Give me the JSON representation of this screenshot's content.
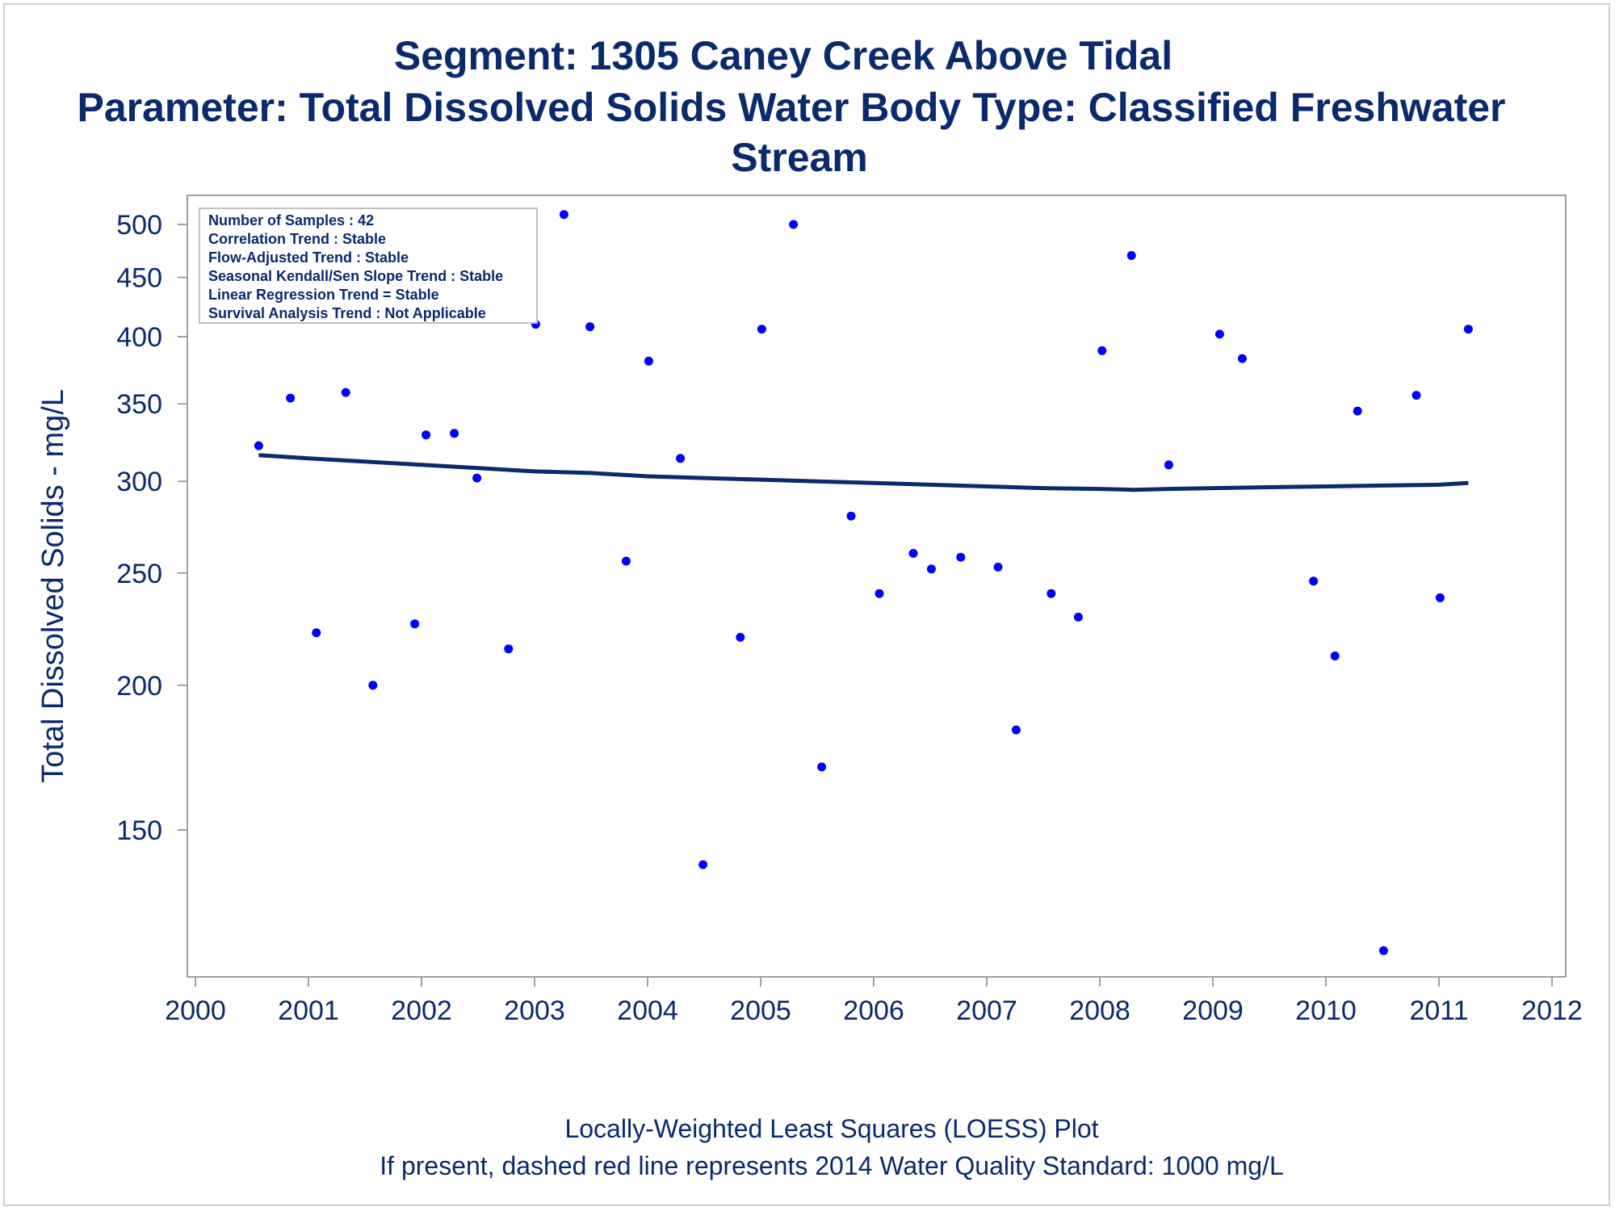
{
  "titles": {
    "line1": "Segment: 1305  Caney Creek Above Tidal",
    "line2": "Parameter: Total Dissolved Solids   Water Body Type: Classified Freshwater",
    "line3": "Stream"
  },
  "footnotes": {
    "line1": "Locally-Weighted Least Squares (LOESS) Plot",
    "line2": "If present, dashed red line represents 2014 Water Quality Standard: 1000  mg/L"
  },
  "stats_box": [
    "Number of Samples : 42",
    "Correlation Trend : Stable",
    "Flow-Adjusted Trend : Stable",
    "Seasonal Kendall/Sen Slope Trend : Stable",
    "Linear Regression Trend = Stable",
    "Survival Analysis Trend : Not Applicable"
  ],
  "colors": {
    "text": "#0a2a6e",
    "points": "#0000ff",
    "loess": "#0a2a6e",
    "frame": "#a0a0a0"
  },
  "chart_data": {
    "type": "scatter",
    "title": "Segment: 1305  Caney Creek Above Tidal",
    "xlabel": "",
    "ylabel": "Total Dissolved Solids - mg/L",
    "y_scale": "log",
    "xlim": [
      2000,
      2012
    ],
    "ylim": [
      120,
      520
    ],
    "x_ticks": [
      2000,
      2001,
      2002,
      2003,
      2004,
      2005,
      2006,
      2007,
      2008,
      2009,
      2010,
      2011,
      2012
    ],
    "y_ticks": [
      150,
      200,
      250,
      300,
      350,
      400,
      450,
      500
    ],
    "grid": false,
    "series": [
      {
        "type": "scatter",
        "points": [
          [
            2000.56,
            322
          ],
          [
            2000.84,
            354
          ],
          [
            2001.07,
            222
          ],
          [
            2001.33,
            358
          ],
          [
            2001.57,
            200
          ],
          [
            2001.94,
            226
          ],
          [
            2002.04,
            329
          ],
          [
            2002.29,
            330
          ],
          [
            2002.49,
            302
          ],
          [
            2002.77,
            215
          ],
          [
            2003.01,
            410
          ],
          [
            2003.26,
            510
          ],
          [
            2003.49,
            408
          ],
          [
            2003.81,
            256
          ],
          [
            2004.01,
            381
          ],
          [
            2004.29,
            314
          ],
          [
            2004.49,
            140
          ],
          [
            2004.82,
            220
          ],
          [
            2005.01,
            406
          ],
          [
            2005.29,
            500
          ],
          [
            2005.54,
            170
          ],
          [
            2005.8,
            280
          ],
          [
            2006.05,
            240
          ],
          [
            2006.35,
            260
          ],
          [
            2006.51,
            252
          ],
          [
            2006.77,
            258
          ],
          [
            2007.1,
            253
          ],
          [
            2007.26,
            183
          ],
          [
            2007.57,
            240
          ],
          [
            2007.81,
            229
          ],
          [
            2008.02,
            389
          ],
          [
            2008.28,
            470
          ],
          [
            2008.61,
            310
          ],
          [
            2009.06,
            402
          ],
          [
            2009.26,
            383
          ],
          [
            2009.89,
            246
          ],
          [
            2010.08,
            212
          ],
          [
            2010.28,
            345
          ],
          [
            2010.51,
            118
          ],
          [
            2010.8,
            356
          ],
          [
            2011.01,
            238
          ],
          [
            2011.26,
            406
          ]
        ]
      },
      {
        "type": "line",
        "name": "",
        "points": [
          [
            2000.56,
            316
          ],
          [
            2001.0,
            314
          ],
          [
            2001.5,
            312
          ],
          [
            2002.0,
            310
          ],
          [
            2002.5,
            308
          ],
          [
            2003.0,
            306
          ],
          [
            2003.5,
            305
          ],
          [
            2004.0,
            303
          ],
          [
            2004.5,
            302
          ],
          [
            2005.0,
            301
          ],
          [
            2005.5,
            300
          ],
          [
            2006.0,
            299
          ],
          [
            2006.5,
            298
          ],
          [
            2007.0,
            297
          ],
          [
            2007.5,
            296
          ],
          [
            2008.0,
            295.5
          ],
          [
            2008.3,
            295
          ],
          [
            2008.6,
            295.5
          ],
          [
            2009.0,
            296
          ],
          [
            2009.5,
            296.5
          ],
          [
            2010.0,
            297
          ],
          [
            2010.5,
            297.5
          ],
          [
            2011.0,
            298
          ],
          [
            2011.26,
            299
          ]
        ]
      }
    ]
  }
}
